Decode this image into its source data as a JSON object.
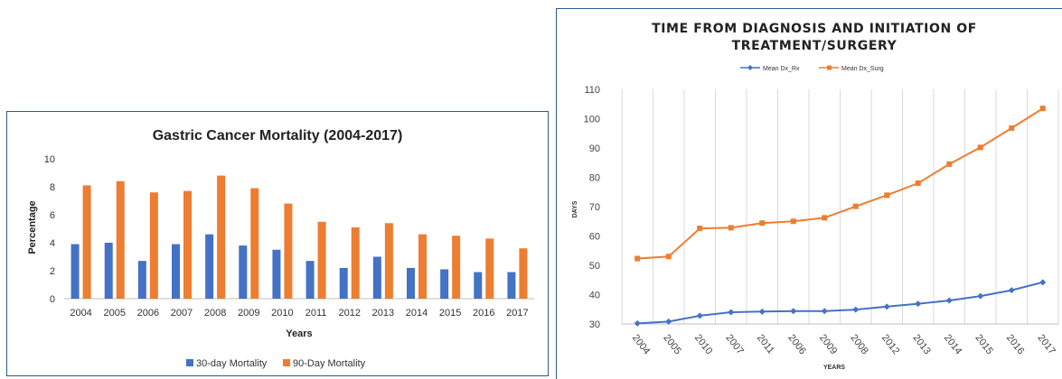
{
  "chart_data": [
    {
      "type": "bar",
      "title": "Gastric Cancer Mortality (2004-2017)",
      "xlabel": "Years",
      "ylabel": "Percentage",
      "ylim": [
        0,
        10
      ],
      "yticks": [
        0,
        2,
        4,
        6,
        8,
        10
      ],
      "grid": false,
      "legend_position": "bottom",
      "categories": [
        "2004",
        "2005",
        "2006",
        "2007",
        "2008",
        "2009",
        "2010",
        "2011",
        "2012",
        "2013",
        "2014",
        "2015",
        "2016",
        "2017"
      ],
      "series": [
        {
          "name": "30-day Mortality",
          "color": "#4472c4",
          "values": [
            3.9,
            4.0,
            2.7,
            3.9,
            4.6,
            3.8,
            3.5,
            2.7,
            2.2,
            3.0,
            2.2,
            2.1,
            1.9,
            1.9
          ]
        },
        {
          "name": "90-Day Mortality",
          "color": "#ed7d31",
          "values": [
            8.1,
            8.4,
            7.6,
            7.7,
            8.8,
            7.9,
            6.8,
            5.5,
            5.1,
            5.4,
            4.6,
            4.5,
            4.3,
            3.6
          ]
        }
      ]
    },
    {
      "type": "line",
      "title": "TIME FROM DIAGNOSIS AND INITIATION OF TREATMENT/SURGERY",
      "title_lines": [
        "TIME FROM DIAGNOSIS AND INITIATION OF",
        "TREATMENT/SURGERY"
      ],
      "xlabel": "YEARS",
      "ylabel": "DAYS",
      "ylim": [
        30,
        110
      ],
      "yticks": [
        30,
        40,
        50,
        60,
        70,
        80,
        90,
        100,
        110
      ],
      "grid": "vertical",
      "legend_position": "top",
      "categories": [
        "2004",
        "2005",
        "2010",
        "2007",
        "2011",
        "2006",
        "2009",
        "2008",
        "2012",
        "2013",
        "2014",
        "2015",
        "2016",
        "2017"
      ],
      "series": [
        {
          "name": "Mean Dx_Rx",
          "color": "#4472c4",
          "marker": "diamond",
          "values": [
            30.2,
            30.8,
            32.8,
            34.0,
            34.2,
            34.4,
            34.4,
            34.9,
            35.9,
            36.9,
            38.0,
            39.5,
            41.5,
            44.2
          ]
        },
        {
          "name": "Mean Dx_Surg",
          "color": "#ed7d31",
          "marker": "square",
          "values": [
            52.3,
            53.0,
            62.6,
            62.8,
            64.4,
            65.0,
            66.2,
            70.1,
            73.9,
            78.0,
            84.5,
            90.2,
            96.8,
            103.5
          ]
        }
      ]
    }
  ]
}
